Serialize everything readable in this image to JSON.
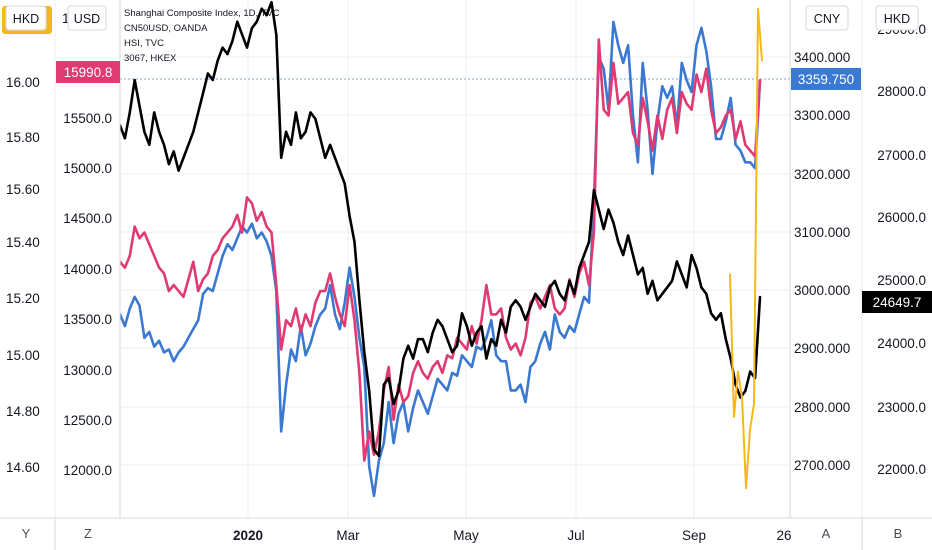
{
  "colors": {
    "black": "#000000",
    "pink": "#e03a72",
    "blue": "#3a78d2",
    "orange": "#f4b918",
    "grid": "#eceff3",
    "axis": "#d6d8dd",
    "price_line": "#7ba6e0"
  },
  "legend": {
    "items": [
      "Shanghai Composite Index, 1D, TVC",
      "CN50USD, OANDA",
      "HSI, TVC",
      "3067, HKEX"
    ]
  },
  "scale_buttons": {
    "far_left": "HKD",
    "left": "USD",
    "right_inner": "CNY",
    "right_outer": "HKD"
  },
  "bottom_bar": {
    "left": "Y",
    "left2": "Z",
    "right": "A",
    "right2": "B"
  },
  "chart_data": {
    "type": "line",
    "x_ticks": [
      "2020",
      "Mar",
      "May",
      "Jul",
      "Sep",
      "26"
    ],
    "axes": {
      "hkd_left": {
        "ticks": [
          "14.60",
          "14.80",
          "15.00",
          "15.20",
          "15.40",
          "15.60",
          "15.80",
          "16.00"
        ],
        "top_partial": "16"
      },
      "usd_left": {
        "ticks": [
          "12000.0",
          "12500.0",
          "13000.0",
          "13500.0",
          "14000.0",
          "14500.0",
          "15000.0",
          "15500.0"
        ],
        "top_partial": "16"
      },
      "cny_right": {
        "ticks": [
          "2700.000",
          "2800.000",
          "2900.000",
          "3000.000",
          "3100.000",
          "3200.000",
          "3300.000",
          "3400.000"
        ]
      },
      "hkd_right": {
        "ticks": [
          "22000.0",
          "23000.0",
          "24000.0",
          "25000.0",
          "26000.0",
          "27000.0",
          "28000.0",
          "29000.0"
        ]
      }
    },
    "last_value_labels": {
      "usd": "15990.8",
      "cny": "3359.750",
      "hkd": "24649.7"
    },
    "series": [
      {
        "name": "Shanghai Composite Index, 1D, TVC",
        "color": "#3a78d2",
        "axis": "CNY",
        "values": [
          2960,
          2940,
          2970,
          2990,
          2975,
          2920,
          2930,
          2905,
          2915,
          2895,
          2900,
          2880,
          2895,
          2905,
          2920,
          2935,
          2950,
          2995,
          3005,
          3000,
          3030,
          3060,
          3080,
          3070,
          3090,
          3110,
          3100,
          3115,
          3090,
          3100,
          3085,
          3060,
          3000,
          2760,
          2840,
          2900,
          2880,
          2940,
          2890,
          2910,
          2940,
          2960,
          2970,
          3010,
          2960,
          2935,
          2980,
          3040,
          2990,
          2920,
          2870,
          2700,
          2650,
          2710,
          2740,
          2810,
          2740,
          2790,
          2810,
          2760,
          2800,
          2830,
          2810,
          2790,
          2820,
          2850,
          2840,
          2830,
          2860,
          2855,
          2890,
          2880,
          2870,
          2905,
          2900,
          2920,
          2950,
          2890,
          2880,
          2880,
          2830,
          2830,
          2840,
          2810,
          2870,
          2880,
          2910,
          2930,
          2900,
          2960,
          2930,
          2920,
          2940,
          2930,
          2960,
          2990,
          2980,
          3150,
          3400,
          3380,
          3310,
          3460,
          3420,
          3390,
          3420,
          3300,
          3220,
          3390,
          3310,
          3200,
          3290,
          3350,
          3330,
          3350,
          3280,
          3390,
          3360,
          3340,
          3420,
          3450,
          3410,
          3350,
          3260,
          3260,
          3290,
          3330,
          3250,
          3240,
          3220,
          3220,
          3210,
          3360
        ]
      },
      {
        "name": "CN50USD, OANDA",
        "color": "#e03a72",
        "axis": "CNY",
        "values": [
          3050,
          3040,
          3060,
          3110,
          3090,
          3100,
          3080,
          3060,
          3040,
          3030,
          3000,
          3010,
          3000,
          2990,
          3020,
          3050,
          3000,
          3020,
          3030,
          3060,
          3070,
          3090,
          3100,
          3110,
          3130,
          3100,
          3160,
          3150,
          3120,
          3135,
          3110,
          3100,
          3010,
          2900,
          2950,
          2940,
          2970,
          2930,
          2960,
          2940,
          2980,
          3000,
          3000,
          3030,
          2990,
          2960,
          2940,
          3010,
          2950,
          2860,
          2710,
          2760,
          2720,
          2760,
          2830,
          2870,
          2780,
          2840,
          2810,
          2820,
          2860,
          2880,
          2860,
          2850,
          2870,
          2880,
          2860,
          2890,
          2885,
          2920,
          2910,
          2900,
          2940,
          2910,
          2950,
          3010,
          2960,
          2960,
          2970,
          2920,
          2900,
          2910,
          2890,
          2920,
          2980,
          2990,
          2970,
          2990,
          3010,
          2970,
          2960,
          2970,
          3020,
          2990,
          3030,
          3050,
          3010,
          3100,
          3430,
          3310,
          3300,
          3390,
          3320,
          3330,
          3340,
          3270,
          3250,
          3330,
          3290,
          3240,
          3300,
          3260,
          3310,
          3330,
          3270,
          3340,
          3320,
          3310,
          3370,
          3340,
          3380,
          3310,
          3270,
          3280,
          3300,
          3310,
          3260,
          3290,
          3250,
          3240,
          3230,
          3360
        ]
      },
      {
        "name": "HSI, TVC",
        "color": "#000000",
        "axis": "HKD",
        "values": [
          27300,
          27100,
          27500,
          28000,
          27600,
          27200,
          27000,
          27500,
          27200,
          27000,
          26700,
          26900,
          26600,
          26800,
          27000,
          27200,
          27500,
          27800,
          28100,
          28000,
          28300,
          28500,
          28400,
          28600,
          28900,
          28700,
          28500,
          28800,
          28900,
          29100,
          29000,
          29200,
          28700,
          26800,
          27200,
          27000,
          27500,
          27100,
          27200,
          27500,
          27400,
          27100,
          26800,
          27000,
          26800,
          26600,
          26400,
          25900,
          25500,
          24600,
          23800,
          23200,
          22300,
          22200,
          23300,
          23400,
          23000,
          23200,
          23700,
          23900,
          23700,
          24000,
          24000,
          23800,
          24100,
          24300,
          24200,
          24000,
          23800,
          23900,
          24400,
          24200,
          23900,
          24100,
          24200,
          23700,
          24000,
          23900,
          24300,
          24100,
          24500,
          24600,
          24500,
          24300,
          24500,
          24700,
          24600,
          24500,
          24800,
          24900,
          24700,
          24600,
          24900,
          24700,
          25100,
          25300,
          25500,
          26300,
          26000,
          25700,
          26000,
          25800,
          25500,
          25300,
          25600,
          25300,
          25000,
          25100,
          24700,
          24900,
          24600,
          24700,
          24800,
          24900,
          25200,
          25000,
          24800,
          25300,
          25100,
          24800,
          24700,
          24400,
          24300,
          24400,
          24000,
          23700,
          23300,
          23100,
          23200,
          23500,
          23400,
          24650
        ]
      },
      {
        "name": "3067, HKEX",
        "color": "#f4b918",
        "axis": "HKD",
        "values": [
          25000,
          22800,
          23500,
          23100,
          21700,
          22600,
          23000,
          29100,
          28300
        ]
      }
    ]
  }
}
